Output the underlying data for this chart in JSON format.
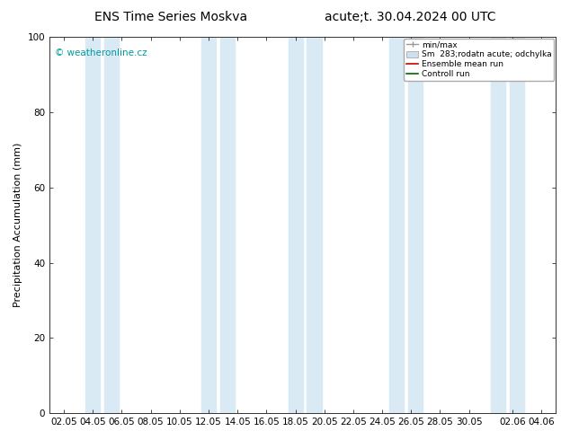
{
  "title_left": "ENS Time Series Moskva",
  "title_right": "acute;t. 30.04.2024 00 UTC",
  "ylabel": "Precipitation Accumulation (mm)",
  "ylim": [
    0,
    100
  ],
  "yticks": [
    0,
    20,
    40,
    60,
    80,
    100
  ],
  "bg_color": "#ffffff",
  "plot_bg_color": "#ffffff",
  "watermark": "© weatheronline.cz",
  "watermark_color": "#009999",
  "legend_labels": [
    "min/max",
    "Sm  283;rodatn acute; odchylka",
    "Ensemble mean run",
    "Controll run"
  ],
  "legend_colors": [
    "#aaaaaa",
    "#cce0f0",
    "#ff0000",
    "#008800"
  ],
  "x_tick_labels": [
    "02.05",
    "04.05",
    "06.05",
    "08.05",
    "10.05",
    "12.05",
    "14.05",
    "16.05",
    "18.05",
    "20.05",
    "22.05",
    "24.05",
    "26.05",
    "28.05",
    "30.05",
    "02.06",
    "04.06"
  ],
  "x_tick_positions": [
    2,
    4,
    6,
    8,
    10,
    12,
    14,
    16,
    18,
    20,
    22,
    24,
    26,
    28,
    30,
    33,
    35
  ],
  "shaded_bands": [
    {
      "x_start": 3.5,
      "x_end": 4.5,
      "color": "#daeaf5"
    },
    {
      "x_start": 4.8,
      "x_end": 5.8,
      "color": "#daeaf5"
    },
    {
      "x_start": 11.5,
      "x_end": 12.5,
      "color": "#daeaf5"
    },
    {
      "x_start": 12.8,
      "x_end": 13.8,
      "color": "#daeaf5"
    },
    {
      "x_start": 17.5,
      "x_end": 18.5,
      "color": "#daeaf5"
    },
    {
      "x_start": 18.8,
      "x_end": 19.8,
      "color": "#daeaf5"
    },
    {
      "x_start": 24.5,
      "x_end": 25.5,
      "color": "#daeaf5"
    },
    {
      "x_start": 25.8,
      "x_end": 26.8,
      "color": "#daeaf5"
    },
    {
      "x_start": 31.5,
      "x_end": 32.5,
      "color": "#daeaf5"
    },
    {
      "x_start": 32.8,
      "x_end": 33.8,
      "color": "#daeaf5"
    }
  ],
  "x_min": 1,
  "x_max": 36,
  "title_fontsize": 10,
  "axis_fontsize": 8,
  "tick_fontsize": 7.5
}
